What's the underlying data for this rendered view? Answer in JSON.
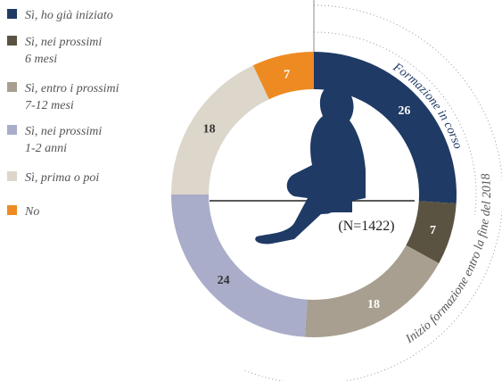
{
  "chart_data": {
    "type": "donut",
    "categories": [
      "Sì, ho già iniziato",
      "Sì, nei prossimi\n6 mesi",
      "Sì, entro i prossimi\n7-12 mesi",
      "Sì, nei prossimi\n1-2 anni",
      "Sì, prima o poi",
      "No"
    ],
    "values": [
      26,
      7,
      18,
      24,
      18,
      7
    ],
    "colors": [
      "#1f3a64",
      "#5b5342",
      "#a89f90",
      "#a9adc9",
      "#dcd6cb",
      "#ee8a22"
    ],
    "annotations": [
      "Formazione in corso",
      "Inizio formazione entro la fine del 2018",
      "(N=1422)"
    ]
  }
}
